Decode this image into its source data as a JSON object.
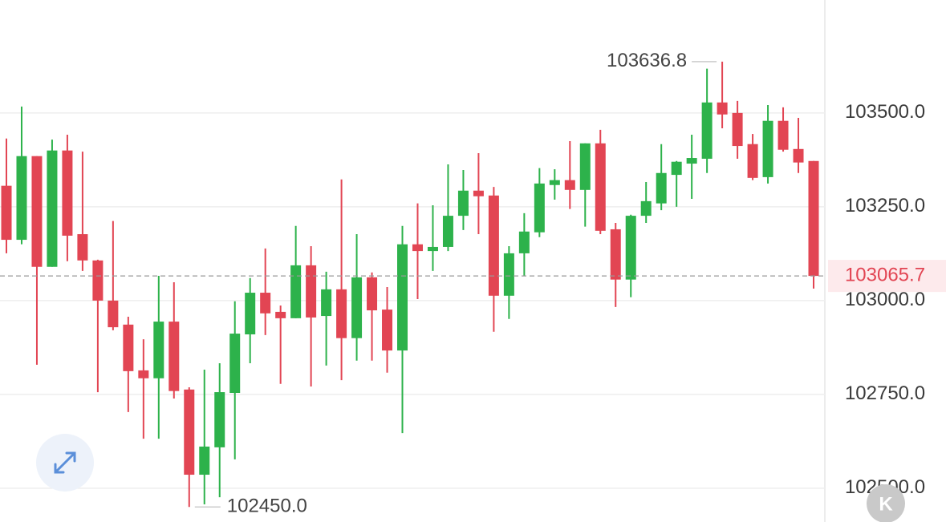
{
  "chart_data": {
    "type": "candlestick",
    "up_color": "#2db24b",
    "down_color": "#e24553",
    "open": [
      103306,
      103162,
      103385,
      103090,
      103400,
      103177,
      103107,
      103000,
      102936,
      102814,
      102793,
      102944,
      102763,
      102536,
      102609,
      102754,
      102910,
      103021,
      102970,
      102953,
      103094,
      102959,
      103030,
      102900,
      103062,
      102976,
      102867,
      103150,
      103132,
      103143,
      103226,
      103293,
      103280,
      103013,
      103126,
      103182,
      103308,
      103321,
      103295,
      103419,
      103190,
      103056,
      103226,
      103259,
      103335,
      103365,
      103378,
      103528,
      103500,
      103417,
      103329,
      103479,
      103404,
      103372
    ],
    "high": [
      103432,
      103517,
      103385,
      103429,
      103442,
      103397,
      103109,
      103212,
      102957,
      102897,
      103066,
      103049,
      102769,
      102816,
      102833,
      102998,
      103060,
      103139,
      102987,
      103199,
      103145,
      103077,
      103323,
      103177,
      103075,
      103036,
      103199,
      103259,
      103254,
      103363,
      103348,
      103393,
      103303,
      103145,
      103233,
      103353,
      103350,
      103425,
      103419,
      103455,
      103207,
      103229,
      103316,
      103417,
      103372,
      103442,
      103618,
      103636.8,
      103532,
      103444,
      103521,
      103515,
      103487,
      103372
    ],
    "low": [
      103126,
      103150,
      102829,
      103090,
      103105,
      103079,
      102756,
      102921,
      102703,
      102632,
      102632,
      102739,
      102450,
      102457,
      102476,
      102577,
      102833,
      102908,
      102778,
      102953,
      102771,
      102827,
      102788,
      102840,
      102840,
      102808,
      102647,
      103004,
      103079,
      103132,
      103188,
      103177,
      102917,
      102951,
      103066,
      103169,
      103269,
      103244,
      103197,
      103177,
      102983,
      103009,
      103207,
      103241,
      103250,
      103271,
      103340,
      103459,
      103378,
      103321,
      103312,
      103397,
      103340,
      103032
    ],
    "close": [
      103162,
      103385,
      103090,
      103400,
      103173,
      103107,
      103000,
      102929,
      102812,
      102793,
      102944,
      102759,
      102536,
      102611,
      102756,
      102912,
      103021,
      102966,
      102953,
      103094,
      102955,
      103030,
      102900,
      103062,
      102974,
      102867,
      103150,
      103132,
      103143,
      103226,
      103293,
      103278,
      103013,
      103126,
      103184,
      103312,
      103321,
      103295,
      103419,
      103186,
      103056,
      103226,
      103265,
      103340,
      103370,
      103380,
      103528,
      103496,
      103412,
      103327,
      103479,
      103402,
      103368,
      103065.7
    ],
    "ylim": [
      102410,
      103801
    ],
    "yticks": [
      {
        "value": 102500,
        "label": "102500.0"
      },
      {
        "value": 102750,
        "label": "102750.0"
      },
      {
        "value": 103000,
        "label": "103000.0"
      },
      {
        "value": 103250,
        "label": "103250.0"
      },
      {
        "value": 103500,
        "label": "103500.0"
      }
    ],
    "grid": true,
    "annotations": {
      "high": 103636.8,
      "low": {
        "value": 102450,
        "label": "102450.0"
      },
      "last": 103065.7
    }
  },
  "watermark_icon": "K"
}
